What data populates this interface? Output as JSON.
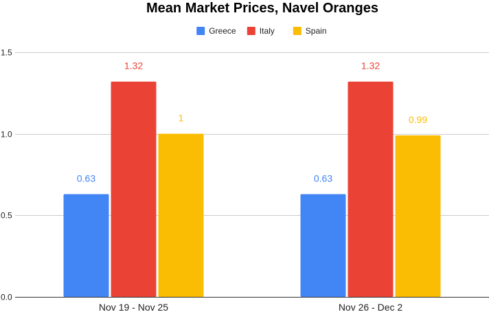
{
  "chart_data": {
    "type": "bar",
    "title": "Mean Market Prices, Navel Oranges",
    "xlabel": "",
    "ylabel": "",
    "categories": [
      "Nov 19 - Nov 25",
      "Nov 26 - Dec 2"
    ],
    "series": [
      {
        "name": "Greece",
        "values": [
          0.63,
          0.63
        ],
        "labels": [
          "0.63",
          "0.63"
        ],
        "color": "#4285F4"
      },
      {
        "name": "Italy",
        "values": [
          1.32,
          1.32
        ],
        "labels": [
          "1.32",
          "1.32"
        ],
        "color": "#EA4335"
      },
      {
        "name": "Spain",
        "values": [
          1.0,
          0.99
        ],
        "labels": [
          "1",
          "0.99"
        ],
        "color": "#FBBC04"
      }
    ],
    "ylim": [
      0,
      1.5
    ],
    "yticks": [
      0,
      0.5,
      1.0,
      1.5
    ],
    "ytick_labels": [
      "0.0",
      "0.5",
      "1.0",
      "1.5"
    ],
    "grid": true,
    "legend_position": "top-center",
    "data_labels": true
  }
}
